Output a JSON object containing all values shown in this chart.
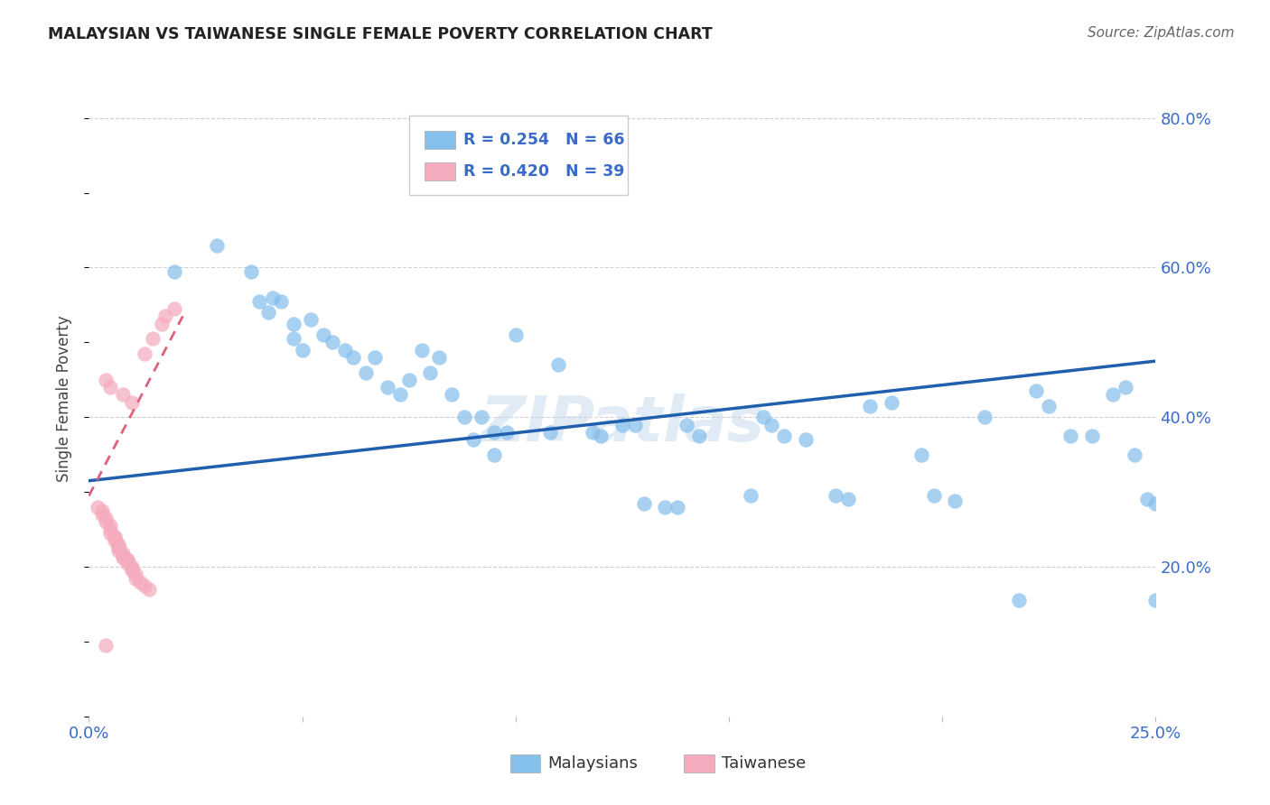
{
  "title": "MALAYSIAN VS TAIWANESE SINGLE FEMALE POVERTY CORRELATION CHART",
  "source": "Source: ZipAtlas.com",
  "ylabel_label": "Single Female Poverty",
  "xlim": [
    0.0,
    0.25
  ],
  "ylim": [
    0.0,
    0.85
  ],
  "ytick_labels": [
    "20.0%",
    "40.0%",
    "60.0%",
    "80.0%"
  ],
  "ytick_values": [
    0.2,
    0.4,
    0.6,
    0.8
  ],
  "xtick_values": [
    0.0,
    0.05,
    0.1,
    0.15,
    0.2,
    0.25
  ],
  "legend_r_blue": "R = 0.254",
  "legend_n_blue": "N = 66",
  "legend_r_pink": "R = 0.420",
  "legend_n_pink": "N = 39",
  "blue_color": "#85BFEC",
  "pink_color": "#F5ABBE",
  "trendline_blue_color": "#1F5FAD",
  "trendline_pink_color": "#E0607A",
  "watermark": "ZIPatlas",
  "blue_trendline_x": [
    0.0,
    0.25
  ],
  "blue_trendline_y": [
    0.315,
    0.475
  ],
  "pink_trendline_x": [
    0.0,
    0.022
  ],
  "pink_trendline_y": [
    0.295,
    0.535
  ],
  "blue_scatter": [
    [
      0.02,
      0.595
    ],
    [
      0.03,
      0.63
    ],
    [
      0.038,
      0.595
    ],
    [
      0.04,
      0.555
    ],
    [
      0.042,
      0.54
    ],
    [
      0.043,
      0.56
    ],
    [
      0.045,
      0.555
    ],
    [
      0.048,
      0.505
    ],
    [
      0.048,
      0.525
    ],
    [
      0.05,
      0.49
    ],
    [
      0.052,
      0.53
    ],
    [
      0.055,
      0.51
    ],
    [
      0.057,
      0.5
    ],
    [
      0.06,
      0.49
    ],
    [
      0.062,
      0.48
    ],
    [
      0.065,
      0.46
    ],
    [
      0.067,
      0.48
    ],
    [
      0.07,
      0.44
    ],
    [
      0.073,
      0.43
    ],
    [
      0.075,
      0.45
    ],
    [
      0.078,
      0.49
    ],
    [
      0.08,
      0.46
    ],
    [
      0.082,
      0.48
    ],
    [
      0.085,
      0.43
    ],
    [
      0.088,
      0.4
    ],
    [
      0.09,
      0.37
    ],
    [
      0.092,
      0.4
    ],
    [
      0.095,
      0.38
    ],
    [
      0.095,
      0.35
    ],
    [
      0.098,
      0.38
    ],
    [
      0.1,
      0.51
    ],
    [
      0.108,
      0.38
    ],
    [
      0.11,
      0.47
    ],
    [
      0.118,
      0.38
    ],
    [
      0.12,
      0.375
    ],
    [
      0.125,
      0.39
    ],
    [
      0.128,
      0.39
    ],
    [
      0.13,
      0.285
    ],
    [
      0.135,
      0.28
    ],
    [
      0.138,
      0.28
    ],
    [
      0.14,
      0.39
    ],
    [
      0.143,
      0.375
    ],
    [
      0.155,
      0.295
    ],
    [
      0.158,
      0.4
    ],
    [
      0.16,
      0.39
    ],
    [
      0.163,
      0.375
    ],
    [
      0.168,
      0.37
    ],
    [
      0.175,
      0.295
    ],
    [
      0.178,
      0.29
    ],
    [
      0.183,
      0.415
    ],
    [
      0.188,
      0.42
    ],
    [
      0.195,
      0.35
    ],
    [
      0.198,
      0.295
    ],
    [
      0.203,
      0.288
    ],
    [
      0.21,
      0.4
    ],
    [
      0.218,
      0.155
    ],
    [
      0.222,
      0.435
    ],
    [
      0.225,
      0.415
    ],
    [
      0.23,
      0.375
    ],
    [
      0.235,
      0.375
    ],
    [
      0.24,
      0.43
    ],
    [
      0.243,
      0.44
    ],
    [
      0.245,
      0.35
    ],
    [
      0.248,
      0.29
    ],
    [
      0.25,
      0.285
    ],
    [
      0.25,
      0.155
    ]
  ],
  "pink_scatter": [
    [
      0.002,
      0.28
    ],
    [
      0.003,
      0.275
    ],
    [
      0.003,
      0.27
    ],
    [
      0.004,
      0.265
    ],
    [
      0.004,
      0.26
    ],
    [
      0.005,
      0.255
    ],
    [
      0.005,
      0.25
    ],
    [
      0.005,
      0.245
    ],
    [
      0.006,
      0.24
    ],
    [
      0.006,
      0.24
    ],
    [
      0.006,
      0.235
    ],
    [
      0.007,
      0.23
    ],
    [
      0.007,
      0.228
    ],
    [
      0.007,
      0.225
    ],
    [
      0.007,
      0.222
    ],
    [
      0.008,
      0.218
    ],
    [
      0.008,
      0.215
    ],
    [
      0.008,
      0.212
    ],
    [
      0.009,
      0.21
    ],
    [
      0.009,
      0.208
    ],
    [
      0.009,
      0.205
    ],
    [
      0.01,
      0.2
    ],
    [
      0.01,
      0.198
    ],
    [
      0.01,
      0.195
    ],
    [
      0.011,
      0.19
    ],
    [
      0.011,
      0.185
    ],
    [
      0.012,
      0.18
    ],
    [
      0.013,
      0.175
    ],
    [
      0.014,
      0.17
    ],
    [
      0.004,
      0.45
    ],
    [
      0.005,
      0.44
    ],
    [
      0.008,
      0.43
    ],
    [
      0.01,
      0.42
    ],
    [
      0.013,
      0.485
    ],
    [
      0.015,
      0.505
    ],
    [
      0.017,
      0.525
    ],
    [
      0.018,
      0.535
    ],
    [
      0.02,
      0.545
    ],
    [
      0.004,
      0.095
    ]
  ]
}
